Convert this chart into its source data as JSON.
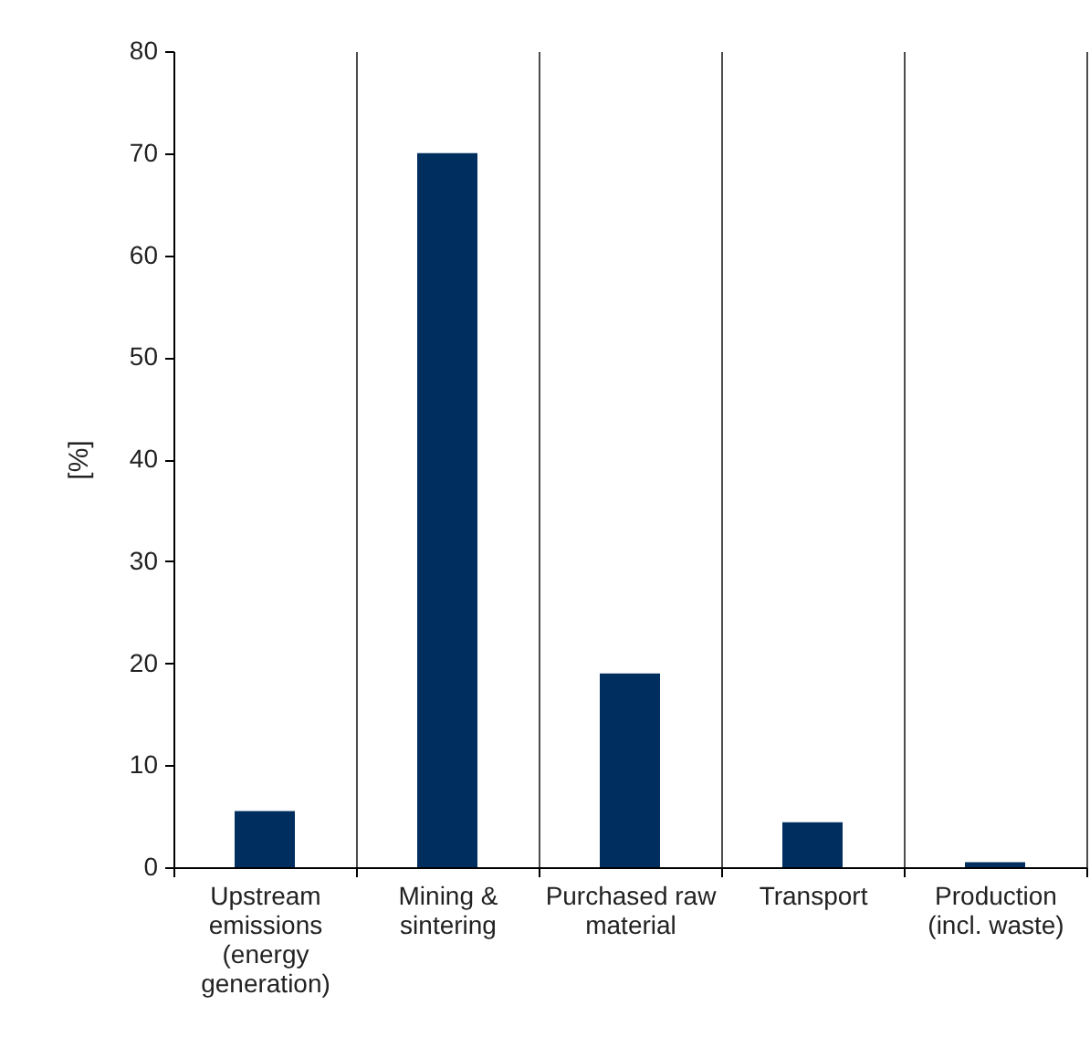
{
  "chart_data": {
    "type": "bar",
    "ylabel": "[%]",
    "categories": [
      "Upstream emissions (energy generation)",
      "Mining & sintering",
      "Purchased raw material",
      "Transport",
      "Production (incl. waste)"
    ],
    "values": [
      5.5,
      70,
      19,
      4.4,
      0.5
    ],
    "color": "#002f5f",
    "ylim": [
      0,
      80
    ],
    "yticks": [
      0,
      10,
      20,
      30,
      40,
      50,
      60,
      70,
      80
    ],
    "grid": "x"
  }
}
